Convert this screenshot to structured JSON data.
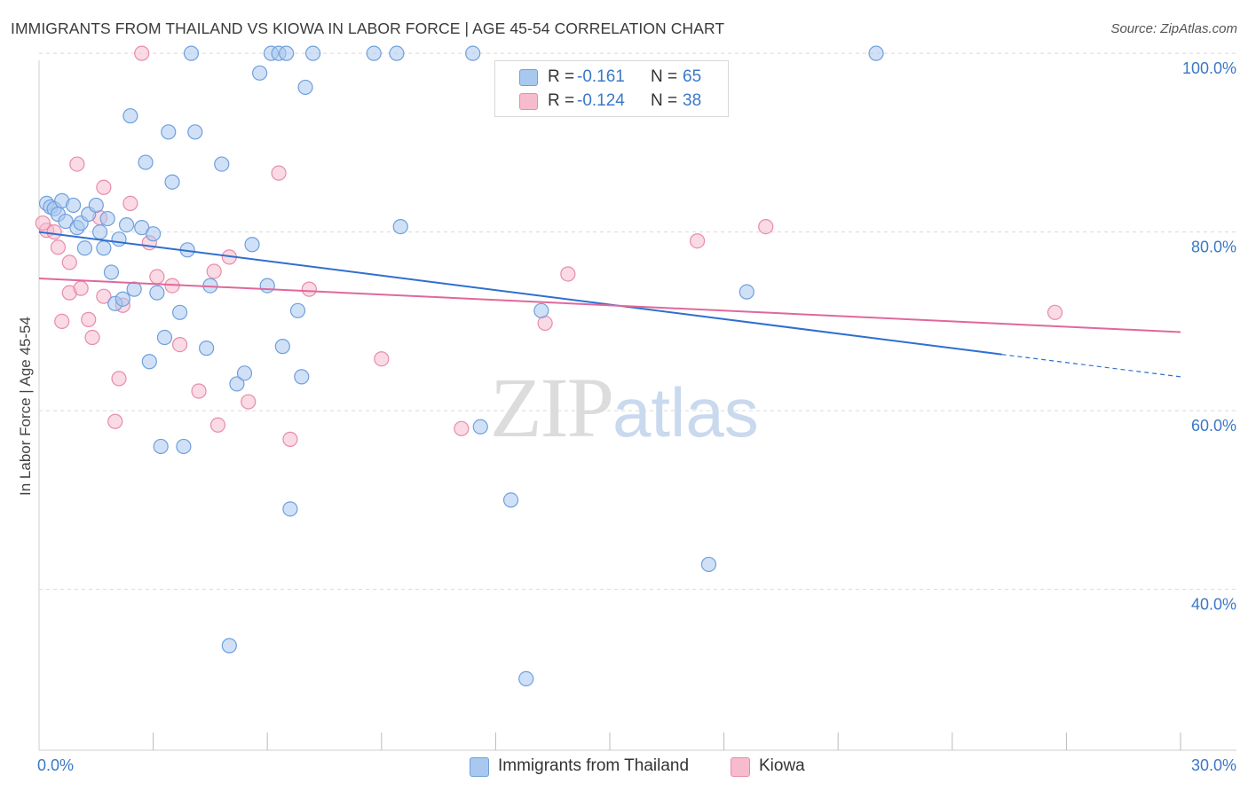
{
  "title": "IMMIGRANTS FROM THAILAND VS KIOWA IN LABOR FORCE | AGE 45-54 CORRELATION CHART",
  "source": "Source: ZipAtlas.com",
  "watermark": {
    "zip": "ZIP",
    "atlas": "atlas"
  },
  "legend": {
    "r_label": "R =",
    "n_label": "N =",
    "series": [
      {
        "r": "-0.161",
        "n": "65"
      },
      {
        "r": "-0.124",
        "n": "38"
      }
    ]
  },
  "colors": {
    "blue_fill": "#a9c8f0",
    "blue_stroke": "#6f9fdd",
    "blue_line": "#2f6fd0",
    "pink_fill": "#f6bccd",
    "pink_stroke": "#e88ca8",
    "pink_line": "#e0689a",
    "tick_text": "#3a78c8",
    "grid": "#d9d9d9"
  },
  "chart_data": {
    "type": "scatter",
    "title": "IMMIGRANTS FROM THAILAND VS KIOWA IN LABOR FORCE | AGE 45-54 CORRELATION CHART",
    "xlabel": "",
    "ylabel": "In Labor Force | Age 45-54",
    "xlim": [
      0,
      30
    ],
    "ylim": [
      22,
      102
    ],
    "x_tick_labels": [
      {
        "value": 0,
        "label": "0.0%"
      },
      {
        "value": 30,
        "label": "30.0%"
      }
    ],
    "y_tick_labels": [
      {
        "value": 100,
        "label": "100.0%"
      },
      {
        "value": 80,
        "label": "80.0%"
      },
      {
        "value": 60,
        "label": "60.0%"
      },
      {
        "value": 40,
        "label": "40.0%"
      }
    ],
    "y_gridlines": [
      100,
      80,
      60,
      40
    ],
    "series": [
      {
        "name": "Immigrants from Thailand",
        "color": "#a9c8f0",
        "trend": {
          "x0": 0,
          "y0": 80.0,
          "x1": 25.3,
          "y1": 66.3,
          "dash_x1": 30,
          "dash_y1": 63.8
        },
        "points": [
          [
            0.2,
            83.2
          ],
          [
            0.3,
            82.8
          ],
          [
            0.4,
            82.6
          ],
          [
            0.5,
            82.0
          ],
          [
            0.6,
            83.5
          ],
          [
            0.7,
            81.2
          ],
          [
            0.9,
            83.0
          ],
          [
            1.0,
            80.5
          ],
          [
            1.1,
            81.0
          ],
          [
            1.2,
            78.2
          ],
          [
            1.3,
            82.0
          ],
          [
            1.5,
            83.0
          ],
          [
            1.6,
            80.0
          ],
          [
            1.7,
            78.2
          ],
          [
            1.8,
            81.5
          ],
          [
            1.9,
            75.5
          ],
          [
            2.0,
            72.0
          ],
          [
            2.1,
            79.2
          ],
          [
            2.2,
            72.5
          ],
          [
            2.3,
            80.8
          ],
          [
            2.4,
            93.0
          ],
          [
            2.5,
            73.6
          ],
          [
            2.7,
            80.5
          ],
          [
            2.8,
            87.8
          ],
          [
            2.9,
            65.5
          ],
          [
            3.0,
            79.8
          ],
          [
            3.1,
            73.2
          ],
          [
            3.2,
            56.0
          ],
          [
            3.3,
            68.2
          ],
          [
            3.4,
            91.2
          ],
          [
            3.5,
            85.6
          ],
          [
            3.7,
            71.0
          ],
          [
            3.8,
            56.0
          ],
          [
            3.9,
            78.0
          ],
          [
            4.0,
            100.0
          ],
          [
            4.1,
            91.2
          ],
          [
            4.4,
            67.0
          ],
          [
            4.5,
            74.0
          ],
          [
            4.8,
            87.6
          ],
          [
            5.0,
            33.7
          ],
          [
            5.2,
            63.0
          ],
          [
            5.4,
            64.2
          ],
          [
            5.6,
            78.6
          ],
          [
            5.8,
            97.8
          ],
          [
            6.0,
            74.0
          ],
          [
            6.1,
            100.0
          ],
          [
            6.3,
            100.0
          ],
          [
            6.4,
            67.2
          ],
          [
            6.5,
            100.0
          ],
          [
            6.6,
            49.0
          ],
          [
            6.8,
            71.2
          ],
          [
            6.9,
            63.8
          ],
          [
            7.0,
            96.2
          ],
          [
            7.2,
            100.0
          ],
          [
            8.8,
            100.0
          ],
          [
            9.4,
            100.0
          ],
          [
            9.5,
            80.6
          ],
          [
            11.4,
            100.0
          ],
          [
            11.6,
            58.2
          ],
          [
            12.4,
            50.0
          ],
          [
            12.8,
            30.0
          ],
          [
            13.2,
            71.2
          ],
          [
            17.6,
            42.8
          ],
          [
            18.6,
            73.3
          ],
          [
            22.0,
            100.0
          ]
        ]
      },
      {
        "name": "Kiowa",
        "color": "#f6bccd",
        "trend": {
          "x0": 0,
          "y0": 74.8,
          "x1": 30,
          "y1": 68.8
        },
        "points": [
          [
            0.2,
            80.2
          ],
          [
            0.4,
            80.0
          ],
          [
            0.5,
            78.3
          ],
          [
            0.6,
            70.0
          ],
          [
            0.8,
            76.6
          ],
          [
            0.8,
            73.2
          ],
          [
            1.0,
            87.6
          ],
          [
            1.1,
            73.7
          ],
          [
            1.3,
            70.2
          ],
          [
            1.4,
            68.2
          ],
          [
            1.6,
            81.6
          ],
          [
            1.7,
            72.8
          ],
          [
            1.7,
            85.0
          ],
          [
            2.0,
            58.8
          ],
          [
            2.1,
            63.6
          ],
          [
            2.2,
            71.8
          ],
          [
            2.4,
            83.2
          ],
          [
            2.7,
            100.0
          ],
          [
            2.9,
            78.8
          ],
          [
            3.1,
            75.0
          ],
          [
            3.5,
            74.0
          ],
          [
            3.7,
            67.4
          ],
          [
            4.2,
            62.2
          ],
          [
            4.6,
            75.6
          ],
          [
            4.7,
            58.4
          ],
          [
            5.0,
            77.2
          ],
          [
            5.5,
            61.0
          ],
          [
            6.3,
            86.6
          ],
          [
            6.6,
            56.8
          ],
          [
            7.1,
            73.6
          ],
          [
            9.0,
            65.8
          ],
          [
            11.1,
            58.0
          ],
          [
            13.3,
            69.8
          ],
          [
            13.9,
            75.3
          ],
          [
            17.3,
            79.0
          ],
          [
            19.1,
            80.6
          ],
          [
            26.7,
            71.0
          ],
          [
            0.1,
            81.0
          ]
        ]
      }
    ]
  }
}
